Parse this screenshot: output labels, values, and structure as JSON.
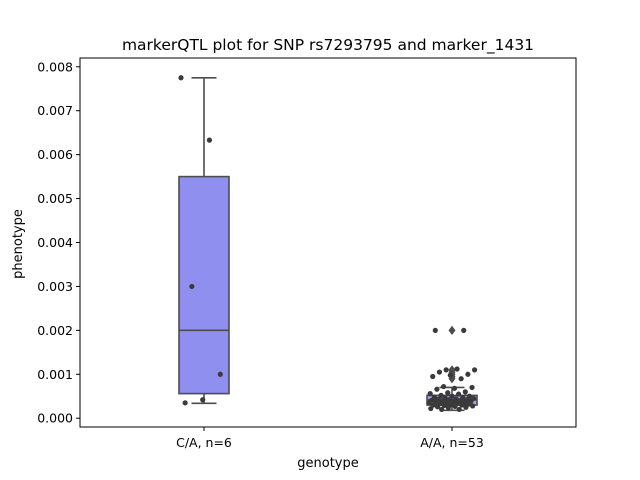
{
  "chart_data": {
    "type": "box",
    "title": "markerQTL plot for SNP rs7293795 and marker_1431",
    "xlabel": "genotype",
    "ylabel": "phenotype",
    "ylim": [
      -0.0002,
      0.0082
    ],
    "y_ticks": [
      "0.000",
      "0.001",
      "0.002",
      "0.003",
      "0.004",
      "0.005",
      "0.006",
      "0.007",
      "0.008"
    ],
    "grid": false,
    "categories": [
      "C/A, n=6",
      "A/A, n=53"
    ],
    "boxes": [
      {
        "category": "C/A, n=6",
        "color": "#8f8ff0",
        "q1": 0.00056,
        "median": 0.002,
        "q3": 0.0055,
        "whisker_low": 0.00034,
        "whisker_high": 0.00775,
        "outliers": [],
        "points": [
          0.00775,
          0.00633,
          0.003,
          0.001,
          0.00042,
          0.00035
        ]
      },
      {
        "category": "A/A, n=53",
        "color": "#a4a4f2",
        "q1": 0.0003,
        "median": 0.00042,
        "q3": 0.00052,
        "whisker_low": 0.00018,
        "whisker_high": 0.0007,
        "outliers": [
          0.002,
          0.0011,
          0.00105,
          0.001,
          0.00095,
          0.0009
        ],
        "points": [
          0.002,
          0.002,
          0.0011,
          0.0011,
          0.00112,
          0.00105,
          0.001,
          0.00098,
          0.00095,
          0.0009,
          0.00072,
          0.0007,
          0.00068,
          0.00066,
          0.0006,
          0.00058,
          0.00056,
          0.00055,
          0.00052,
          0.0005,
          0.0005,
          0.00048,
          0.00047,
          0.00046,
          0.00045,
          0.00044,
          0.00043,
          0.00042,
          0.00042,
          0.00041,
          0.0004,
          0.0004,
          0.00039,
          0.00038,
          0.00037,
          0.00036,
          0.00035,
          0.00035,
          0.00034,
          0.00033,
          0.00032,
          0.00031,
          0.0003,
          0.0003,
          0.00029,
          0.00028,
          0.00027,
          0.00026,
          0.00025,
          0.00024,
          0.00022,
          0.0002,
          0.0002
        ]
      }
    ],
    "colors": {
      "box_line": "#4d4d4d",
      "points": "#3a3a3a"
    }
  }
}
